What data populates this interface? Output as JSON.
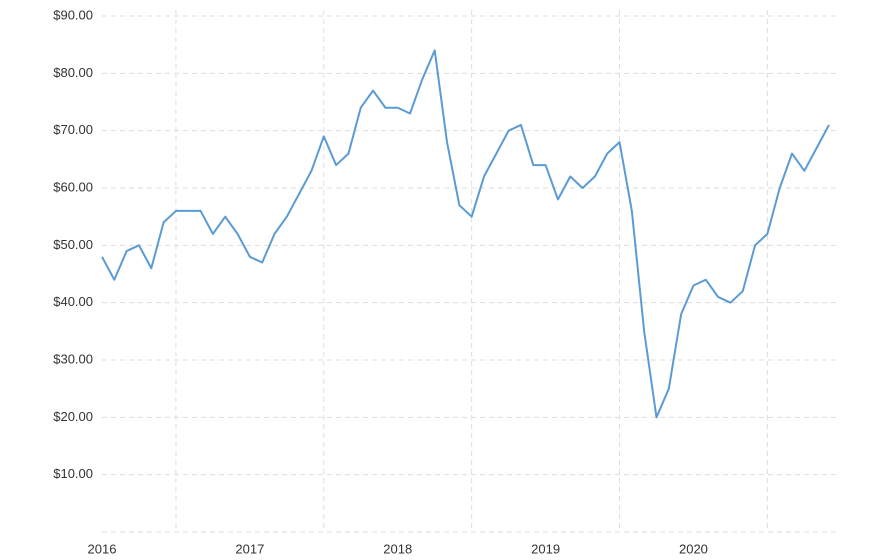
{
  "chart_data": {
    "type": "line",
    "categories": [
      "2016",
      null,
      null,
      null,
      null,
      null,
      null,
      null,
      null,
      null,
      null,
      null,
      "2017",
      null,
      null,
      null,
      null,
      null,
      null,
      null,
      null,
      null,
      null,
      null,
      "2018",
      null,
      null,
      null,
      null,
      null,
      null,
      null,
      null,
      null,
      null,
      null,
      "2019",
      null,
      null,
      null,
      null,
      null,
      null,
      null,
      null,
      null,
      null,
      null,
      "2020",
      null,
      null,
      null,
      null,
      null,
      null,
      null,
      null,
      null,
      null,
      null
    ],
    "values": [
      48,
      44,
      49,
      50,
      46,
      54,
      56,
      56,
      56,
      52,
      55,
      52,
      48,
      47,
      52,
      55,
      59,
      63,
      69,
      64,
      66,
      74,
      77,
      74,
      74,
      73,
      79,
      84,
      68,
      57,
      55,
      62,
      66,
      70,
      71,
      64,
      64,
      58,
      62,
      60,
      62,
      66,
      68,
      56,
      35,
      20,
      25,
      38,
      43,
      44,
      41,
      40,
      42,
      50,
      52,
      60,
      66,
      63,
      67,
      71
    ],
    "color": "#5b9bd5",
    "ylim": [
      0,
      90
    ],
    "yticks": [
      {
        "value": 10,
        "label": "$10.00"
      },
      {
        "value": 20,
        "label": "$20.00"
      },
      {
        "value": 30,
        "label": "$30.00"
      },
      {
        "value": 40,
        "label": "$40.00"
      },
      {
        "value": 50,
        "label": "$50.00"
      },
      {
        "value": 60,
        "label": "$60.00"
      },
      {
        "value": 70,
        "label": "$70.00"
      },
      {
        "value": 80,
        "label": "$80.00"
      },
      {
        "value": 90,
        "label": "$90.00"
      }
    ],
    "grid": true
  }
}
